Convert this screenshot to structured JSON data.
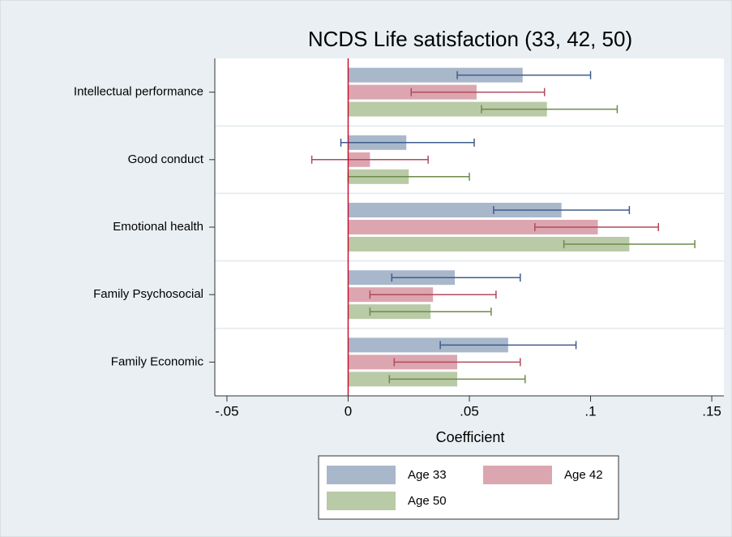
{
  "chart_data": {
    "type": "barh_errorbar",
    "title": "NCDS Life satisfaction (33, 42, 50)",
    "x_label": "Coefficient",
    "categories": [
      "Intellectual performance",
      "Good conduct",
      "Emotional health",
      "Family Psychosocial",
      "Family Economic"
    ],
    "series": [
      {
        "name": "Age 33",
        "color": "#a9b7cb",
        "error_color": "#3d5d8c",
        "values": [
          0.072,
          0.024,
          0.088,
          0.044,
          0.066
        ],
        "ci_low": [
          0.045,
          -0.003,
          0.06,
          0.018,
          0.038
        ],
        "ci_high": [
          0.1,
          0.052,
          0.116,
          0.071,
          0.094
        ]
      },
      {
        "name": "Age 42",
        "color": "#dca6b0",
        "error_color": "#b04a5c",
        "values": [
          0.053,
          0.009,
          0.103,
          0.035,
          0.045
        ],
        "ci_low": [
          0.026,
          -0.015,
          0.077,
          0.009,
          0.019
        ],
        "ci_high": [
          0.081,
          0.033,
          0.128,
          0.061,
          0.071
        ]
      },
      {
        "name": "Age 50",
        "color": "#b9caa6",
        "error_color": "#6f8a4a",
        "values": [
          0.082,
          0.025,
          0.116,
          0.034,
          0.045
        ],
        "ci_low": [
          0.055,
          0.0,
          0.089,
          0.009,
          0.017
        ],
        "ci_high": [
          0.111,
          0.05,
          0.143,
          0.059,
          0.073
        ]
      }
    ],
    "xlim": [
      -0.055,
      0.155
    ],
    "xticks": [
      {
        "value": -0.05,
        "label": "-.05"
      },
      0,
      {
        "value": 0.05,
        "label": ".05"
      },
      {
        "value": 0.1,
        "label": ".1"
      },
      {
        "value": 0.15,
        "label": ".15"
      }
    ],
    "reference_line": 0,
    "reference_color": "#c8102e",
    "grid": true,
    "legend_position": "bottom"
  }
}
